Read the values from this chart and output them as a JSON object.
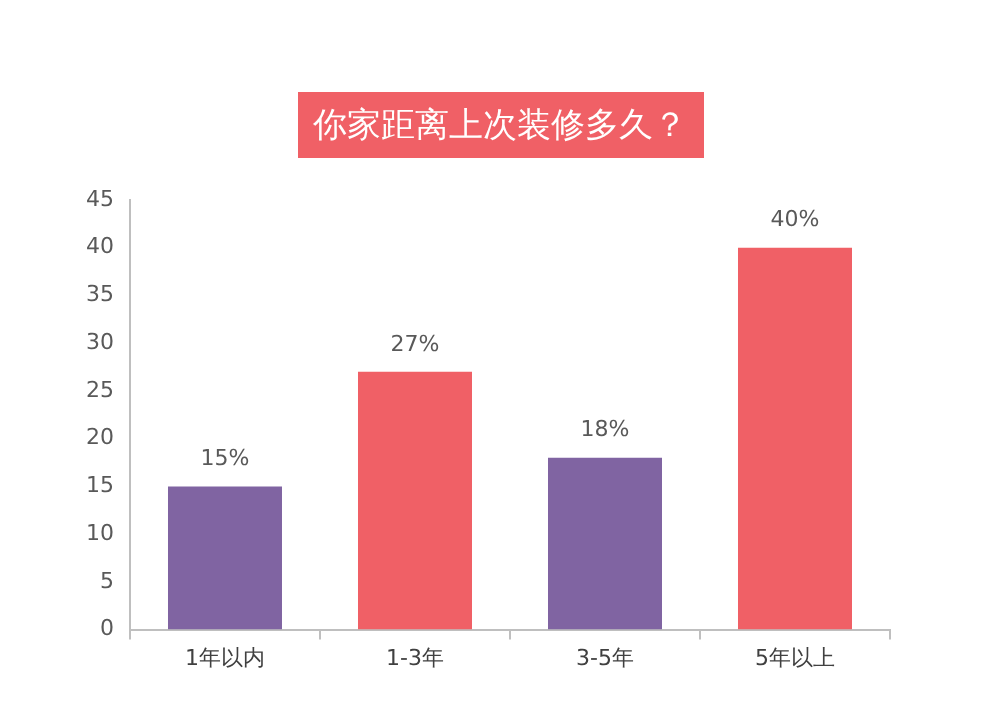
{
  "chart_data": {
    "type": "bar",
    "title": "你家距离上次装修多久？",
    "categories": [
      "1年以内",
      "1-3年",
      "3-5年",
      "5年以上"
    ],
    "values": [
      15,
      27,
      18,
      40
    ],
    "colors": [
      "#8064a2",
      "#f06066",
      "#8064a2",
      "#f06066"
    ],
    "value_labels": [
      "15%",
      "27%",
      "18%",
      "40%"
    ],
    "ylim": [
      0,
      45
    ],
    "yticks": [
      0,
      5,
      10,
      15,
      20,
      25,
      30,
      35,
      40,
      45
    ],
    "grid": false,
    "legend": false
  }
}
